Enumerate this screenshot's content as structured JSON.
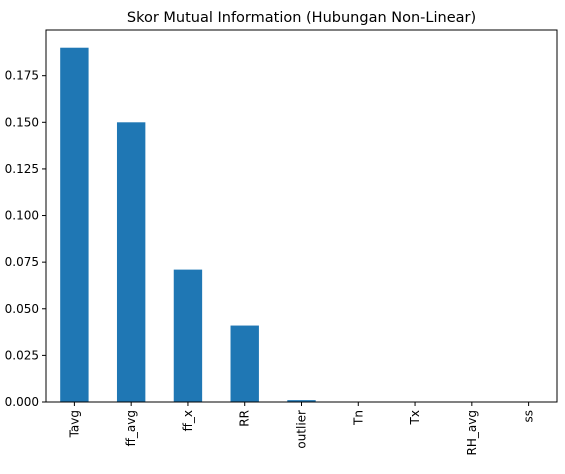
{
  "chart_data": {
    "type": "bar",
    "title": "Skor Mutual Information (Hubungan Non-Linear)",
    "xlabel": "",
    "ylabel": "",
    "categories": [
      "Tavg",
      "ff_avg",
      "ff_x",
      "RR",
      "outlier",
      "Tn",
      "Tx",
      "RH_avg",
      "ss"
    ],
    "values": [
      0.19,
      0.15,
      0.071,
      0.041,
      0.001,
      0.0,
      0.0,
      0.0,
      0.0
    ],
    "ylim": [
      0,
      0.1995
    ],
    "yticks": [
      "0.000",
      "0.025",
      "0.050",
      "0.075",
      "0.100",
      "0.125",
      "0.150",
      "0.175"
    ],
    "grid": false,
    "bar_color": "#1f77b4",
    "legend": "none"
  }
}
